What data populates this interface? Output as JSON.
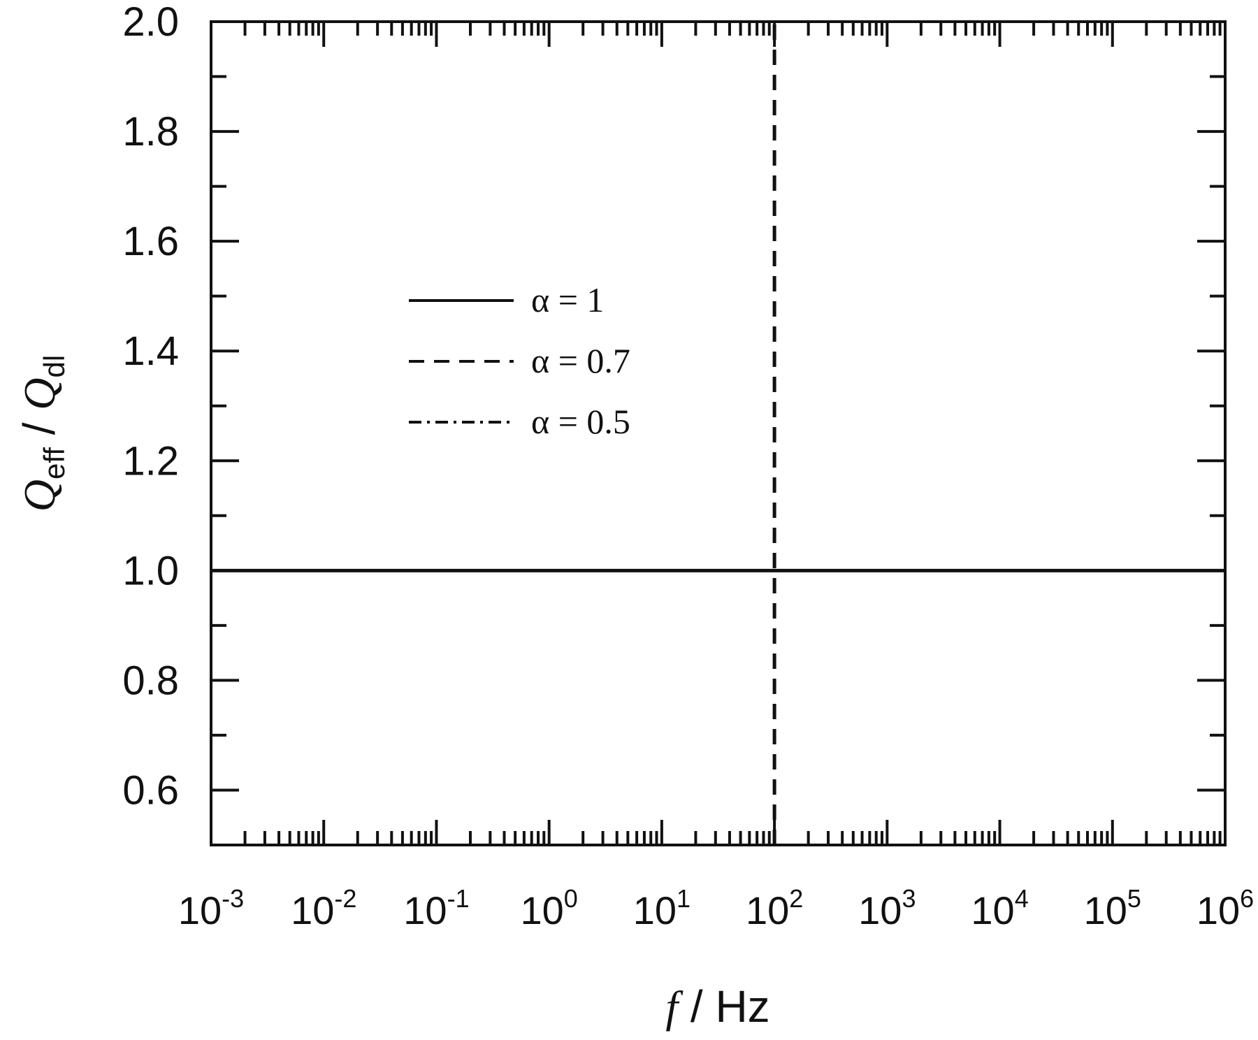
{
  "chart_data": {
    "type": "line",
    "xlabel": [
      "f",
      " / Hz"
    ],
    "ylabel": [
      "Q",
      "eff",
      " / ",
      "Q",
      "dl"
    ],
    "xscale": "log",
    "xlim": [
      0.001,
      1000000
    ],
    "xticks": [
      {
        "value": 0.001,
        "label": "10",
        "exponent": "-3"
      },
      {
        "value": 0.01,
        "label": "10",
        "exponent": "-2"
      },
      {
        "value": 0.1,
        "label": "10",
        "exponent": "-1"
      },
      {
        "value": 1,
        "label": "10",
        "exponent": "0"
      },
      {
        "value": 10,
        "label": "10",
        "exponent": "1"
      },
      {
        "value": 100,
        "label": "10",
        "exponent": "2"
      },
      {
        "value": 1000,
        "label": "10",
        "exponent": "3"
      },
      {
        "value": 10000,
        "label": "10",
        "exponent": "4"
      },
      {
        "value": 100000,
        "label": "10",
        "exponent": "5"
      },
      {
        "value": 1000000,
        "label": "10",
        "exponent": "6"
      }
    ],
    "xminorticks": [
      0.002,
      0.003,
      0.004,
      0.005,
      0.006,
      0.007,
      0.008,
      0.009,
      0.02,
      0.03,
      0.04,
      0.05,
      0.06,
      0.07,
      0.08,
      0.09,
      0.2,
      0.3,
      0.4,
      0.5,
      0.6,
      0.7,
      0.8,
      0.9,
      2,
      3,
      4,
      5,
      6,
      7,
      8,
      9,
      20,
      30,
      40,
      50,
      60,
      70,
      80,
      90,
      200,
      300,
      400,
      500,
      600,
      700,
      800,
      900,
      2000,
      3000,
      4000,
      5000,
      6000,
      7000,
      8000,
      9000,
      20000,
      30000,
      40000,
      50000,
      60000,
      70000,
      80000,
      90000,
      200000,
      300000,
      400000,
      500000,
      600000,
      700000,
      800000,
      900000
    ],
    "ylim": [
      0.5,
      2.0
    ],
    "yticks": [
      0.6,
      0.8,
      {
        "value": 1,
        "label": "1.0"
      },
      1.2,
      1.4,
      1.6,
      1.8,
      {
        "value": 2,
        "label": "2.0"
      }
    ],
    "yminorticks": [
      0.5,
      0.7,
      0.9,
      1.1,
      1.3,
      1.5,
      1.7,
      1.9
    ],
    "series": [
      {
        "name": "α = 1",
        "color": "#111111",
        "dash": "solid",
        "x": [
          0.001,
          1000000
        ],
        "values": [
          1,
          1
        ]
      },
      {
        "name": "α = 0.7",
        "color": "#111111",
        "dash": "dashed",
        "x": [
          100,
          100
        ],
        "values": [
          0.5,
          2.0
        ]
      },
      {
        "name": "α = 0.5",
        "color": "#111111",
        "dash": "dashdot",
        "x": [],
        "values": []
      }
    ]
  }
}
